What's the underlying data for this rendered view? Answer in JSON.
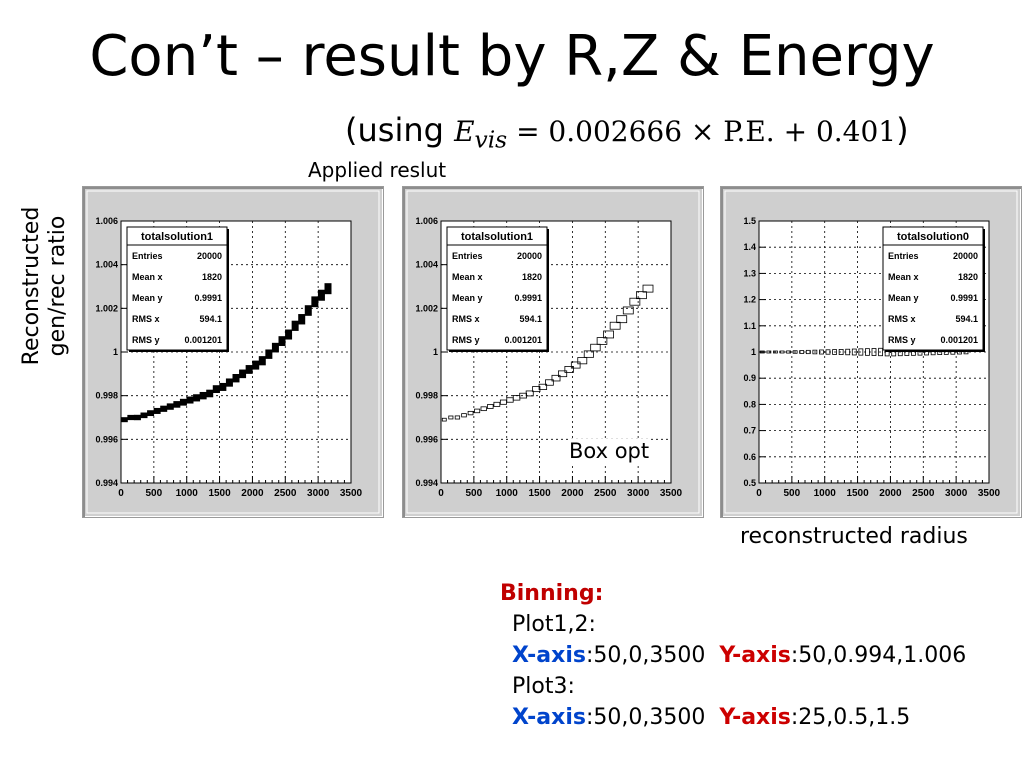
{
  "title": "Con’t – result by R,Z & Energy",
  "subtitle": {
    "open": "(using ",
    "formula_lhs": "E",
    "formula_sub": "vis",
    "formula_rhs": " = 0.002666 × P.E. + 0.401",
    "close": ")"
  },
  "applied_label": "Applied reslut",
  "y_axis_label": [
    "Reconstructed",
    "gen/rec ratio"
  ],
  "x_axis_label": "reconstructed radius",
  "box_opt_label": "Box opt",
  "binning": {
    "heading": "Binning:",
    "plot12": "Plot1,2:",
    "plot3": "Plot3:",
    "x_axis_key": "X-axis",
    "y_axis_key": "Y-axis",
    "plot12_x": ":50,0,3500",
    "plot12_y": ":50,0.994,1.006",
    "plot3_x": ":50,0,3500",
    "plot3_y": ":25,0.5,1.5"
  },
  "colors": {
    "heading": "#c00000",
    "x_axis": "#0044cc",
    "y_axis": "#cc0000",
    "panel": "#cfcfcf"
  },
  "chart_data": [
    {
      "type": "scatter",
      "style": "dense",
      "title": "",
      "stats": {
        "name": "totalsolution1",
        "rows": [
          [
            "Entries",
            "20000"
          ],
          [
            "Mean x",
            "1820"
          ],
          [
            "Mean y",
            "0.9991"
          ],
          [
            "RMS x",
            "594.1"
          ],
          [
            "RMS y",
            "0.001201"
          ]
        ]
      },
      "xlim": [
        0,
        3500
      ],
      "ylim": [
        0.994,
        1.006
      ],
      "xticks": [
        "0",
        "500",
        "1000",
        "1500",
        "2000",
        "2500",
        "3000",
        "3500"
      ],
      "yticks": [
        "0.994",
        "0.996",
        "0.998",
        "1",
        "1.002",
        "1.004",
        "1.006"
      ],
      "ytick_values": [
        0.994,
        0.996,
        0.998,
        1.0,
        1.002,
        1.004,
        1.006
      ],
      "x": [
        50,
        150,
        250,
        350,
        450,
        550,
        650,
        750,
        850,
        950,
        1050,
        1150,
        1250,
        1350,
        1450,
        1550,
        1650,
        1750,
        1850,
        1950,
        2050,
        2150,
        2250,
        2350,
        2450,
        2550,
        2650,
        2750,
        2850,
        2950,
        3050,
        3150
      ],
      "y": [
        0.9969,
        0.997,
        0.997,
        0.9971,
        0.9972,
        0.9973,
        0.9974,
        0.9975,
        0.9976,
        0.9977,
        0.9978,
        0.9979,
        0.998,
        0.9981,
        0.9983,
        0.9984,
        0.9986,
        0.9988,
        0.999,
        0.9992,
        0.9994,
        0.9996,
        0.9999,
        1.0002,
        1.0005,
        1.0008,
        1.0012,
        1.0015,
        1.0019,
        1.0023,
        1.0026,
        1.0029
      ]
    },
    {
      "type": "scatter",
      "style": "box",
      "title": "",
      "stats": {
        "name": "totalsolution1",
        "rows": [
          [
            "Entries",
            "20000"
          ],
          [
            "Mean x",
            "1820"
          ],
          [
            "Mean y",
            "0.9991"
          ],
          [
            "RMS x",
            "594.1"
          ],
          [
            "RMS y",
            "0.001201"
          ]
        ]
      },
      "xlim": [
        0,
        3500
      ],
      "ylim": [
        0.994,
        1.006
      ],
      "xticks": [
        "0",
        "500",
        "1000",
        "1500",
        "2000",
        "2500",
        "3000",
        "3500"
      ],
      "yticks": [
        "0.994",
        "0.996",
        "0.998",
        "1",
        "1.002",
        "1.004",
        "1.006"
      ],
      "ytick_values": [
        0.994,
        0.996,
        0.998,
        1.0,
        1.002,
        1.004,
        1.006
      ],
      "x": [
        50,
        150,
        250,
        350,
        450,
        550,
        650,
        750,
        850,
        950,
        1050,
        1150,
        1250,
        1350,
        1450,
        1550,
        1650,
        1750,
        1850,
        1950,
        2050,
        2150,
        2250,
        2350,
        2450,
        2550,
        2650,
        2750,
        2850,
        2950,
        3050,
        3150
      ],
      "y": [
        0.9969,
        0.997,
        0.997,
        0.9971,
        0.9972,
        0.9973,
        0.9974,
        0.9975,
        0.9976,
        0.9977,
        0.9978,
        0.9979,
        0.998,
        0.9981,
        0.9983,
        0.9984,
        0.9986,
        0.9988,
        0.999,
        0.9992,
        0.9994,
        0.9996,
        0.9999,
        1.0002,
        1.0005,
        1.0008,
        1.0012,
        1.0015,
        1.0019,
        1.0023,
        1.0026,
        1.0029
      ]
    },
    {
      "type": "scatter",
      "style": "box-flat",
      "title": "",
      "stats": {
        "name": "totalsolution0",
        "rows": [
          [
            "Entries",
            "20000"
          ],
          [
            "Mean x",
            "1820"
          ],
          [
            "Mean y",
            "0.9991"
          ],
          [
            "RMS x",
            "594.1"
          ],
          [
            "RMS y",
            "0.001201"
          ]
        ]
      },
      "xlim": [
        0,
        3500
      ],
      "ylim": [
        0.5,
        1.5
      ],
      "xticks": [
        "0",
        "500",
        "1000",
        "1500",
        "2000",
        "2500",
        "3000",
        "3500"
      ],
      "yticks": [
        "0.5",
        "0.6",
        "0.7",
        "0.8",
        "0.9",
        "1",
        "1.1",
        "1.2",
        "1.3",
        "1.4",
        "1.5"
      ],
      "ytick_values": [
        0.5,
        0.6,
        0.7,
        0.8,
        0.9,
        1.0,
        1.1,
        1.2,
        1.3,
        1.4,
        1.5
      ],
      "x": [
        50,
        150,
        250,
        350,
        450,
        550,
        650,
        750,
        850,
        950,
        1050,
        1150,
        1250,
        1350,
        1450,
        1550,
        1650,
        1750,
        1850,
        1950,
        2050,
        2150,
        2250,
        2350,
        2450,
        2550,
        2650,
        2750,
        2850,
        2950,
        3050,
        3150
      ],
      "y": [
        1,
        1,
        1,
        1,
        1,
        1,
        1,
        1,
        1,
        1,
        1,
        1,
        1,
        1,
        1,
        1,
        1,
        1,
        1,
        1,
        1,
        1,
        1,
        1,
        1,
        1,
        1,
        1,
        1,
        1,
        1,
        1
      ]
    }
  ]
}
